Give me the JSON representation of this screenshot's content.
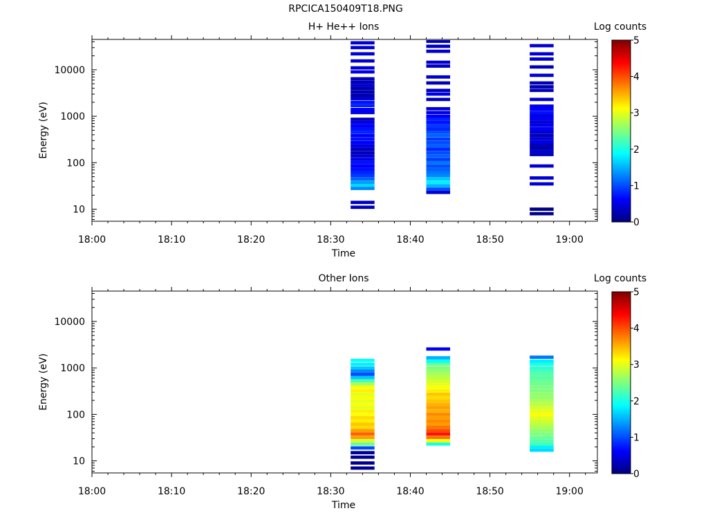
{
  "page": {
    "title": "RPCICA150409T18.PNG"
  },
  "colorbar_stops": [
    "#00007f",
    "#0000ff",
    "#007fff",
    "#00ffff",
    "#7fff7f",
    "#ffff00",
    "#ff7f00",
    "#ff0000",
    "#7f0000"
  ],
  "chart_data": [
    {
      "type": "heatmap",
      "title": "H+ He++ Ions",
      "xlabel": "Time",
      "ylabel": "Energy (eV)",
      "x_ticks": [
        "18:00",
        "18:10",
        "18:20",
        "18:30",
        "18:40",
        "18:50",
        "19:00"
      ],
      "xlim_minutes": [
        0,
        63.5
      ],
      "yscale": "log",
      "ylim": [
        5.5,
        45000
      ],
      "y_ticks": [
        "10",
        "100",
        "1000",
        "10000"
      ],
      "colorbar": {
        "label": "Log counts",
        "range": [
          0,
          5
        ],
        "ticks": [
          "0",
          "1",
          "2",
          "3",
          "4",
          "5"
        ]
      },
      "columns": [
        {
          "time_start": "18:32.5",
          "time_end": "18:35.5",
          "bins": [
            {
              "e": 11,
              "v": 0.3
            },
            {
              "e": 14,
              "v": 0.3
            },
            {
              "e": 28,
              "v": 1.3
            },
            {
              "e": 33,
              "v": 1.7
            },
            {
              "e": 38,
              "v": 1.4
            },
            {
              "e": 45,
              "v": 1.1
            },
            {
              "e": 53,
              "v": 0.9
            },
            {
              "e": 62,
              "v": 0.8
            },
            {
              "e": 72,
              "v": 0.7
            },
            {
              "e": 85,
              "v": 0.6
            },
            {
              "e": 100,
              "v": 0.7
            },
            {
              "e": 118,
              "v": 0.5
            },
            {
              "e": 140,
              "v": 0.4
            },
            {
              "e": 165,
              "v": 0.3
            },
            {
              "e": 195,
              "v": 0.3
            },
            {
              "e": 230,
              "v": 0.5
            },
            {
              "e": 270,
              "v": 0.6
            },
            {
              "e": 320,
              "v": 0.7
            },
            {
              "e": 380,
              "v": 0.6
            },
            {
              "e": 450,
              "v": 0.8
            },
            {
              "e": 530,
              "v": 0.7
            },
            {
              "e": 620,
              "v": 0.6
            },
            {
              "e": 730,
              "v": 0.5
            },
            {
              "e": 860,
              "v": 0.3
            },
            {
              "e": 1200,
              "v": 0.5
            },
            {
              "e": 1400,
              "v": 0.6
            },
            {
              "e": 1700,
              "v": 0.8
            },
            {
              "e": 2000,
              "v": 0.7
            },
            {
              "e": 2400,
              "v": 0.4
            },
            {
              "e": 2800,
              "v": 0.2
            },
            {
              "e": 3300,
              "v": 0.3
            },
            {
              "e": 3900,
              "v": 0.2
            },
            {
              "e": 4600,
              "v": 0.4
            },
            {
              "e": 5400,
              "v": 0.3
            },
            {
              "e": 6400,
              "v": 0.3
            },
            {
              "e": 9000,
              "v": 0.5
            },
            {
              "e": 11000,
              "v": 0.4
            },
            {
              "e": 15500,
              "v": 0.4
            },
            {
              "e": 22000,
              "v": 0.4
            },
            {
              "e": 30000,
              "v": 0.4
            },
            {
              "e": 38000,
              "v": 0.4
            }
          ]
        },
        {
          "time_start": "18:42",
          "time_end": "18:45",
          "bins": [
            {
              "e": 23,
              "v": 0.4
            },
            {
              "e": 27,
              "v": 1.0
            },
            {
              "e": 32,
              "v": 1.5
            },
            {
              "e": 38,
              "v": 1.8
            },
            {
              "e": 45,
              "v": 1.6
            },
            {
              "e": 53,
              "v": 1.3
            },
            {
              "e": 62,
              "v": 1.2
            },
            {
              "e": 72,
              "v": 1.1
            },
            {
              "e": 85,
              "v": 1.0
            },
            {
              "e": 100,
              "v": 1.2
            },
            {
              "e": 118,
              "v": 0.9
            },
            {
              "e": 140,
              "v": 1.1
            },
            {
              "e": 165,
              "v": 1.0
            },
            {
              "e": 195,
              "v": 0.8
            },
            {
              "e": 230,
              "v": 1.1
            },
            {
              "e": 270,
              "v": 1.0
            },
            {
              "e": 320,
              "v": 0.9
            },
            {
              "e": 380,
              "v": 1.1
            },
            {
              "e": 450,
              "v": 1.0
            },
            {
              "e": 530,
              "v": 0.8
            },
            {
              "e": 620,
              "v": 0.9
            },
            {
              "e": 730,
              "v": 0.7
            },
            {
              "e": 860,
              "v": 0.8
            },
            {
              "e": 1000,
              "v": 0.6
            },
            {
              "e": 1200,
              "v": 0.5
            },
            {
              "e": 1450,
              "v": 0.4
            },
            {
              "e": 2300,
              "v": 0.3
            },
            {
              "e": 3000,
              "v": 0.5
            },
            {
              "e": 3600,
              "v": 0.3
            },
            {
              "e": 5200,
              "v": 0.3
            },
            {
              "e": 7000,
              "v": 0.4
            },
            {
              "e": 12000,
              "v": 0.3
            },
            {
              "e": 14500,
              "v": 0.4
            },
            {
              "e": 25000,
              "v": 0.4
            },
            {
              "e": 32000,
              "v": 0.3
            },
            {
              "e": 41000,
              "v": 0.3
            }
          ]
        },
        {
          "time_start": "18:55",
          "time_end": "18:58",
          "bins": [
            {
              "e": 8,
              "v": 0.05
            },
            {
              "e": 10,
              "v": 0.05
            },
            {
              "e": 35,
              "v": 0.4
            },
            {
              "e": 47,
              "v": 0.4
            },
            {
              "e": 85,
              "v": 0.4
            },
            {
              "e": 150,
              "v": 0.3
            },
            {
              "e": 175,
              "v": 0.4
            },
            {
              "e": 205,
              "v": 0.2
            },
            {
              "e": 240,
              "v": 0.3
            },
            {
              "e": 280,
              "v": 0.5
            },
            {
              "e": 330,
              "v": 0.4
            },
            {
              "e": 390,
              "v": 0.3
            },
            {
              "e": 460,
              "v": 0.4
            },
            {
              "e": 540,
              "v": 0.6
            },
            {
              "e": 640,
              "v": 0.5
            },
            {
              "e": 750,
              "v": 0.4
            },
            {
              "e": 880,
              "v": 0.6
            },
            {
              "e": 1030,
              "v": 0.5
            },
            {
              "e": 1200,
              "v": 0.7
            },
            {
              "e": 1420,
              "v": 0.6
            },
            {
              "e": 1650,
              "v": 0.5
            },
            {
              "e": 2300,
              "v": 0.4
            },
            {
              "e": 3600,
              "v": 0.3
            },
            {
              "e": 4300,
              "v": 0.2
            },
            {
              "e": 5200,
              "v": 0.3
            },
            {
              "e": 7600,
              "v": 0.4
            },
            {
              "e": 11500,
              "v": 0.3
            },
            {
              "e": 17000,
              "v": 0.4
            },
            {
              "e": 22000,
              "v": 0.4
            },
            {
              "e": 33000,
              "v": 0.4
            }
          ]
        }
      ]
    },
    {
      "type": "heatmap",
      "title": "Other Ions",
      "xlabel": "Time",
      "ylabel": "Energy (eV)",
      "x_ticks": [
        "18:00",
        "18:10",
        "18:20",
        "18:30",
        "18:40",
        "18:50",
        "19:00"
      ],
      "xlim_minutes": [
        0,
        63.5
      ],
      "yscale": "log",
      "ylim": [
        5.5,
        45000
      ],
      "y_ticks": [
        "10",
        "100",
        "1000",
        "10000"
      ],
      "colorbar": {
        "label": "Log counts",
        "range": [
          0,
          5
        ],
        "ticks": [
          "0",
          "1",
          "2",
          "3",
          "4",
          "5"
        ]
      },
      "columns": [
        {
          "time_start": "18:32.5",
          "time_end": "18:35.5",
          "bins": [
            {
              "e": 7,
              "v": 0.1
            },
            {
              "e": 9,
              "v": 0.1
            },
            {
              "e": 12,
              "v": 0.1
            },
            {
              "e": 15,
              "v": 0.1
            },
            {
              "e": 19,
              "v": 1.0
            },
            {
              "e": 23,
              "v": 2.4
            },
            {
              "e": 27,
              "v": 2.9
            },
            {
              "e": 32,
              "v": 3.6
            },
            {
              "e": 38,
              "v": 3.9
            },
            {
              "e": 45,
              "v": 3.6
            },
            {
              "e": 53,
              "v": 3.3
            },
            {
              "e": 62,
              "v": 3.4
            },
            {
              "e": 72,
              "v": 3.2
            },
            {
              "e": 85,
              "v": 3.3
            },
            {
              "e": 100,
              "v": 3.1
            },
            {
              "e": 118,
              "v": 3.2
            },
            {
              "e": 140,
              "v": 3.0
            },
            {
              "e": 165,
              "v": 3.1
            },
            {
              "e": 195,
              "v": 3.0
            },
            {
              "e": 230,
              "v": 3.1
            },
            {
              "e": 270,
              "v": 3.0
            },
            {
              "e": 320,
              "v": 3.2
            },
            {
              "e": 380,
              "v": 3.1
            },
            {
              "e": 450,
              "v": 2.7
            },
            {
              "e": 530,
              "v": 2.2
            },
            {
              "e": 620,
              "v": 1.6
            },
            {
              "e": 730,
              "v": 1.0
            },
            {
              "e": 860,
              "v": 1.3
            },
            {
              "e": 1000,
              "v": 1.6
            },
            {
              "e": 1200,
              "v": 1.8
            },
            {
              "e": 1450,
              "v": 1.9
            }
          ]
        },
        {
          "time_start": "18:42",
          "time_end": "18:45",
          "bins": [
            {
              "e": 23,
              "v": 2.0
            },
            {
              "e": 27,
              "v": 3.1
            },
            {
              "e": 32,
              "v": 3.8
            },
            {
              "e": 38,
              "v": 4.3
            },
            {
              "e": 45,
              "v": 4.0
            },
            {
              "e": 53,
              "v": 3.8
            },
            {
              "e": 62,
              "v": 3.6
            },
            {
              "e": 72,
              "v": 3.7
            },
            {
              "e": 85,
              "v": 3.6
            },
            {
              "e": 100,
              "v": 3.7
            },
            {
              "e": 118,
              "v": 3.5
            },
            {
              "e": 140,
              "v": 3.6
            },
            {
              "e": 165,
              "v": 3.5
            },
            {
              "e": 195,
              "v": 3.4
            },
            {
              "e": 230,
              "v": 3.3
            },
            {
              "e": 270,
              "v": 3.4
            },
            {
              "e": 320,
              "v": 3.2
            },
            {
              "e": 380,
              "v": 3.1
            },
            {
              "e": 450,
              "v": 3.0
            },
            {
              "e": 530,
              "v": 2.9
            },
            {
              "e": 620,
              "v": 2.8
            },
            {
              "e": 730,
              "v": 2.7
            },
            {
              "e": 860,
              "v": 2.6
            },
            {
              "e": 1000,
              "v": 2.5
            },
            {
              "e": 1200,
              "v": 2.4
            },
            {
              "e": 1400,
              "v": 1.9
            },
            {
              "e": 1650,
              "v": 1.5
            },
            {
              "e": 2550,
              "v": 0.6
            }
          ]
        },
        {
          "time_start": "18:55",
          "time_end": "18:58",
          "bins": [
            {
              "e": 17,
              "v": 1.7
            },
            {
              "e": 20,
              "v": 1.8
            },
            {
              "e": 23,
              "v": 2.2
            },
            {
              "e": 27,
              "v": 2.3
            },
            {
              "e": 32,
              "v": 2.4
            },
            {
              "e": 38,
              "v": 2.5
            },
            {
              "e": 45,
              "v": 2.6
            },
            {
              "e": 53,
              "v": 2.7
            },
            {
              "e": 62,
              "v": 2.8
            },
            {
              "e": 72,
              "v": 2.9
            },
            {
              "e": 85,
              "v": 3.0
            },
            {
              "e": 100,
              "v": 3.1
            },
            {
              "e": 118,
              "v": 3.0
            },
            {
              "e": 140,
              "v": 2.9
            },
            {
              "e": 165,
              "v": 2.8
            },
            {
              "e": 195,
              "v": 2.7
            },
            {
              "e": 230,
              "v": 2.6
            },
            {
              "e": 270,
              "v": 2.6
            },
            {
              "e": 320,
              "v": 2.5
            },
            {
              "e": 380,
              "v": 2.5
            },
            {
              "e": 450,
              "v": 2.4
            },
            {
              "e": 530,
              "v": 2.4
            },
            {
              "e": 620,
              "v": 2.3
            },
            {
              "e": 730,
              "v": 2.3
            },
            {
              "e": 860,
              "v": 2.2
            },
            {
              "e": 1000,
              "v": 2.1
            },
            {
              "e": 1200,
              "v": 2.0
            },
            {
              "e": 1400,
              "v": 1.8
            },
            {
              "e": 1700,
              "v": 1.2
            }
          ]
        }
      ]
    }
  ]
}
